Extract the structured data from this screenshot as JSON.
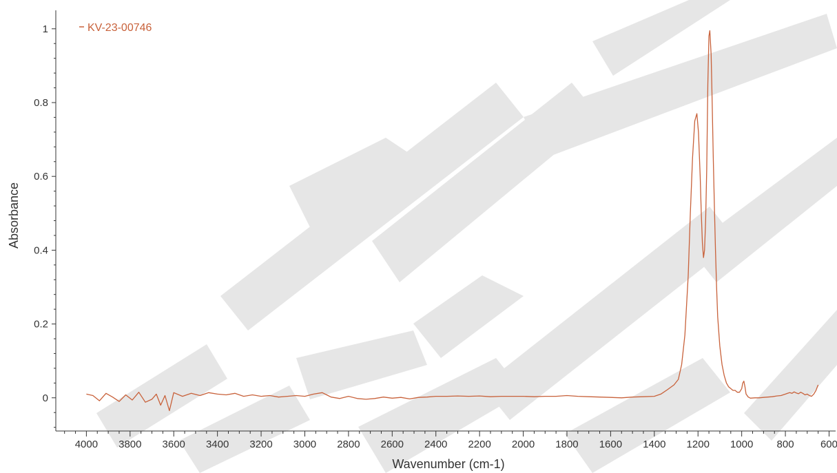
{
  "chart_data": {
    "type": "line",
    "xlabel": "Wavenumber (cm-1)",
    "ylabel": "Absorbance",
    "xlim": [
      4140,
      570
    ],
    "ylim": [
      -0.09,
      1.05
    ],
    "x_reversed": true,
    "grid": false,
    "legend_position": "top-left",
    "x_ticks": [
      4000,
      3800,
      3600,
      3400,
      3200,
      3000,
      2800,
      2600,
      2400,
      2200,
      2000,
      1800,
      1600,
      1400,
      1200,
      1000,
      800,
      600
    ],
    "x_tick_labels": [
      "4000",
      "3800",
      "3600",
      "3400",
      "3200",
      "3000",
      "2800",
      "2600",
      "2400",
      "2200",
      "2000",
      "1800",
      "1600",
      "1400",
      "1200",
      "1000",
      "800",
      "600"
    ],
    "y_ticks": [
      0,
      0.2,
      0.4,
      0.6,
      0.8,
      1
    ],
    "y_tick_labels": [
      "0",
      "0.2",
      "0.4",
      "0.6",
      "0.8",
      "1"
    ],
    "series": [
      {
        "name": "KV-23-00746",
        "color": "#c8613a",
        "x": [
          4000,
          3970,
          3940,
          3910,
          3880,
          3850,
          3820,
          3790,
          3760,
          3730,
          3700,
          3680,
          3660,
          3640,
          3620,
          3600,
          3560,
          3520,
          3480,
          3440,
          3400,
          3360,
          3320,
          3280,
          3240,
          3200,
          3160,
          3120,
          3080,
          3040,
          3000,
          2960,
          2920,
          2900,
          2880,
          2840,
          2800,
          2760,
          2720,
          2680,
          2640,
          2600,
          2560,
          2520,
          2480,
          2440,
          2400,
          2350,
          2300,
          2250,
          2200,
          2150,
          2100,
          2050,
          2000,
          1950,
          1900,
          1850,
          1800,
          1750,
          1700,
          1650,
          1600,
          1550,
          1500,
          1450,
          1400,
          1370,
          1340,
          1310,
          1290,
          1275,
          1260,
          1245,
          1235,
          1225,
          1215,
          1205,
          1198,
          1190,
          1185,
          1180,
          1175,
          1170,
          1165,
          1160,
          1155,
          1150,
          1146,
          1140,
          1135,
          1130,
          1125,
          1120,
          1115,
          1110,
          1100,
          1090,
          1080,
          1070,
          1060,
          1050,
          1040,
          1030,
          1020,
          1010,
          1000,
          995,
          990,
          985,
          980,
          970,
          960,
          940,
          920,
          900,
          880,
          860,
          840,
          820,
          800,
          790,
          780,
          770,
          760,
          750,
          740,
          730,
          720,
          710,
          700,
          690,
          680,
          670,
          660,
          650
        ],
        "y": [
          0.01,
          0.006,
          -0.008,
          0.012,
          0.002,
          -0.01,
          0.008,
          -0.006,
          0.015,
          -0.012,
          -0.004,
          0.01,
          -0.02,
          0.006,
          -0.035,
          0.014,
          0.004,
          0.012,
          0.006,
          0.014,
          0.01,
          0.008,
          0.012,
          0.004,
          0.008,
          0.004,
          0.006,
          0.002,
          0.004,
          0.006,
          0.004,
          0.01,
          0.014,
          0.008,
          0.002,
          -0.002,
          0.004,
          -0.002,
          -0.004,
          -0.002,
          0.002,
          -0.001,
          0.001,
          -0.003,
          0.001,
          0.002,
          0.004,
          0.004,
          0.005,
          0.004,
          0.005,
          0.003,
          0.004,
          0.004,
          0.004,
          0.003,
          0.004,
          0.004,
          0.006,
          0.004,
          0.003,
          0.002,
          0.001,
          0.0,
          0.002,
          0.003,
          0.004,
          0.01,
          0.022,
          0.035,
          0.05,
          0.09,
          0.17,
          0.33,
          0.5,
          0.65,
          0.75,
          0.77,
          0.72,
          0.6,
          0.5,
          0.42,
          0.38,
          0.4,
          0.48,
          0.62,
          0.85,
          0.98,
          0.995,
          0.93,
          0.8,
          0.65,
          0.52,
          0.4,
          0.3,
          0.22,
          0.14,
          0.09,
          0.06,
          0.04,
          0.03,
          0.025,
          0.02,
          0.02,
          0.015,
          0.015,
          0.025,
          0.04,
          0.045,
          0.03,
          0.01,
          0.002,
          -0.001,
          0.0,
          0.0,
          0.001,
          0.002,
          0.003,
          0.005,
          0.006,
          0.01,
          0.012,
          0.014,
          0.012,
          0.016,
          0.013,
          0.011,
          0.015,
          0.012,
          0.008,
          0.01,
          0.006,
          0.004,
          0.01,
          0.02,
          0.035
        ]
      }
    ]
  }
}
